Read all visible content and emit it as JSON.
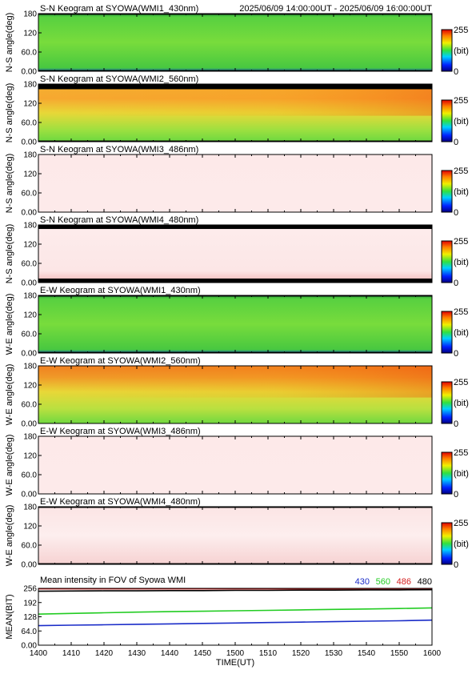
{
  "header": {
    "time_range": "2025/06/09 14:00:00UT - 2025/06/09 16:00:00UT"
  },
  "colorbar": {
    "max_label": "255",
    "unit_label": "(bit)",
    "min_label": "0"
  },
  "keogram_common": {
    "y_ticks": [
      "0.00",
      "60.0",
      "120",
      "180"
    ],
    "ylim": [
      0,
      180
    ]
  },
  "keograms": [
    {
      "title": "S-N Keogram at SYOWA(WMI1_430nm)",
      "ylabel": "N-S angle(deg)",
      "style": "green",
      "mid_intensity": 0.52,
      "top_band": 0.02,
      "bottom_band": 0.02
    },
    {
      "title": "S-N Keogram at SYOWA(WMI2_560nm)",
      "ylabel": "N-S angle(deg)",
      "style": "orange",
      "mid_intensity": 0.78,
      "top_band": 0.09,
      "bottom_band": 0.02
    },
    {
      "title": "S-N Keogram at SYOWA(WMI3_486nm)",
      "ylabel": "N-S angle(deg)",
      "style": "pale",
      "mid_intensity": 1.0,
      "top_band": 0.0,
      "bottom_band": 0.0
    },
    {
      "title": "S-N Keogram at SYOWA(WMI4_480nm)",
      "ylabel": "N-S angle(deg)",
      "style": "pale-red",
      "mid_intensity": 1.0,
      "top_band": 0.07,
      "bottom_band": 0.07
    },
    {
      "title": "E-W Keogram at SYOWA(WMI1_430nm)",
      "ylabel": "W-E angle(deg)",
      "style": "green",
      "mid_intensity": 0.52,
      "top_band": 0.02,
      "bottom_band": 0.02
    },
    {
      "title": "E-W Keogram at SYOWA(WMI2_560nm)",
      "ylabel": "W-E angle(deg)",
      "style": "orange-red",
      "mid_intensity": 0.8,
      "top_band": 0.0,
      "bottom_band": 0.0
    },
    {
      "title": "E-W Keogram at SYOWA(WMI3_486nm)",
      "ylabel": "W-E angle(deg)",
      "style": "pale",
      "mid_intensity": 1.0,
      "top_band": 0.0,
      "bottom_band": 0.0
    },
    {
      "title": "E-W Keogram at SYOWA(WMI4_480nm)",
      "ylabel": "W-E angle(deg)",
      "style": "pale-edge",
      "mid_intensity": 1.0,
      "top_band": 0.02,
      "bottom_band": 0.02
    }
  ],
  "chart_data": {
    "type": "line",
    "title": "Mean intensity in FOV of Syowa WMI",
    "xlabel": "TIME(UT)",
    "ylabel": "MEAN(BIT)",
    "x_ticks": [
      "1400",
      "1410",
      "1420",
      "1430",
      "1440",
      "1450",
      "1500",
      "1510",
      "1520",
      "1530",
      "1540",
      "1550",
      "1600"
    ],
    "y_ticks": [
      "0.00",
      "64.0",
      "128",
      "192",
      "256"
    ],
    "ylim": [
      0,
      256
    ],
    "x": [
      0,
      10,
      20,
      30,
      40,
      50,
      60,
      70,
      80,
      90,
      100,
      110,
      120
    ],
    "series": [
      {
        "name": "430",
        "color": "#1a2cc8",
        "values": [
          88,
          90,
          92,
          94,
          96,
          98,
          100,
          102,
          104,
          106,
          108,
          110,
          113
        ]
      },
      {
        "name": "560",
        "color": "#22cc22",
        "values": [
          140,
          143,
          146,
          149,
          151,
          153,
          155,
          157,
          159,
          161,
          163,
          165,
          168
        ]
      },
      {
        "name": "486",
        "color": "#d42020",
        "values": [
          254,
          254,
          254,
          254,
          254,
          254,
          254,
          254,
          254,
          254,
          254,
          254,
          254
        ]
      },
      {
        "name": "480",
        "color": "#000000",
        "values": [
          243,
          244,
          245,
          245,
          246,
          246,
          247,
          247,
          248,
          248,
          249,
          249,
          250
        ]
      }
    ]
  }
}
